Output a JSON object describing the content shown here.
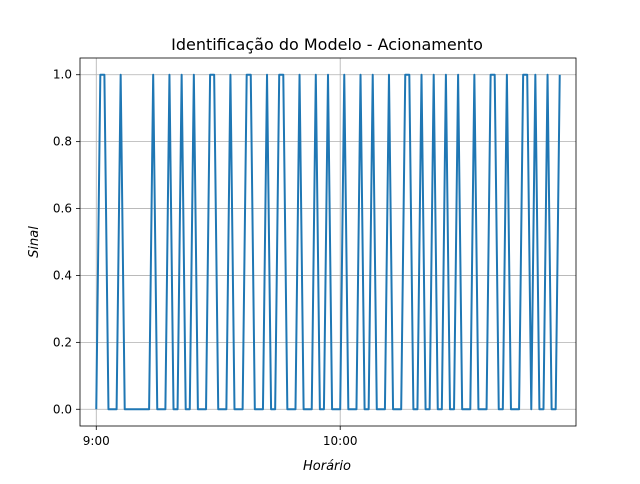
{
  "chart_data": {
    "type": "line",
    "title": "Identificação do Modelo - Acionamento",
    "xlabel": "Horário",
    "ylabel": "Sinal",
    "x_unit": "clock time",
    "x_ticks": [
      "9:00",
      "10:00"
    ],
    "xlim": [
      "8:56",
      "10:58"
    ],
    "y_ticks": [
      "0.0",
      "0.2",
      "0.4",
      "0.6",
      "0.8",
      "1.0"
    ],
    "ylim": [
      -0.05,
      1.05
    ],
    "grid": true,
    "color": "#1f77b4",
    "series": [
      {
        "x": [
          "9:00",
          "9:01",
          "9:02",
          "9:03",
          "9:04",
          "9:05",
          "9:06",
          "9:07",
          "9:08",
          "9:09",
          "9:10",
          "9:11",
          "9:12",
          "9:13",
          "9:14",
          "9:15",
          "9:16",
          "9:17",
          "9:18",
          "9:19",
          "9:20",
          "9:21",
          "9:22",
          "9:23",
          "9:24",
          "9:25",
          "9:26",
          "9:27",
          "9:28",
          "9:29",
          "9:30",
          "9:31",
          "9:32",
          "9:33",
          "9:34",
          "9:35",
          "9:36",
          "9:37",
          "9:38",
          "9:39",
          "9:40",
          "9:41",
          "9:42",
          "9:43",
          "9:44",
          "9:45",
          "9:46",
          "9:47",
          "9:48",
          "9:49",
          "9:50",
          "9:51",
          "9:52",
          "9:53",
          "9:54",
          "9:55",
          "9:56",
          "9:57",
          "9:58",
          "9:59",
          "10:00",
          "10:01",
          "10:02",
          "10:03",
          "10:04",
          "10:05",
          "10:06",
          "10:07",
          "10:08",
          "10:09",
          "10:10",
          "10:11",
          "10:12",
          "10:13",
          "10:14",
          "10:15",
          "10:16",
          "10:17",
          "10:18",
          "10:19",
          "10:20",
          "10:21",
          "10:22",
          "10:23",
          "10:24",
          "10:25",
          "10:26",
          "10:27",
          "10:28",
          "10:29",
          "10:30",
          "10:31",
          "10:32",
          "10:33",
          "10:34",
          "10:35",
          "10:36",
          "10:37",
          "10:38",
          "10:39",
          "10:40",
          "10:41",
          "10:42",
          "10:43",
          "10:44",
          "10:45",
          "10:46",
          "10:47",
          "10:48",
          "10:49",
          "10:50",
          "10:51",
          "10:52",
          "10:53",
          "10:54"
        ],
        "y": [
          0,
          1,
          1,
          0,
          0,
          0,
          1,
          0,
          0,
          0,
          0,
          0,
          0,
          0,
          1,
          0,
          0,
          0,
          1,
          0,
          0,
          1,
          0,
          0,
          1,
          0,
          0,
          0,
          1,
          1,
          0,
          0,
          0,
          1,
          0,
          0,
          0,
          1,
          1,
          0,
          0,
          0,
          1,
          0,
          0,
          1,
          1,
          0,
          0,
          0,
          1,
          0,
          0,
          0,
          1,
          0,
          0,
          1,
          0,
          0,
          0,
          1,
          0,
          0,
          0,
          1,
          0,
          0,
          1,
          0,
          0,
          0,
          1,
          0,
          0,
          0,
          1,
          1,
          0,
          0,
          1,
          0,
          0,
          1,
          0,
          0,
          1,
          0,
          0,
          1,
          0,
          0,
          0,
          1,
          0,
          0,
          0,
          1,
          1,
          0,
          0,
          1,
          0,
          0,
          0,
          1,
          1,
          0,
          1,
          0,
          0,
          1,
          0,
          0,
          1
        ]
      }
    ]
  }
}
